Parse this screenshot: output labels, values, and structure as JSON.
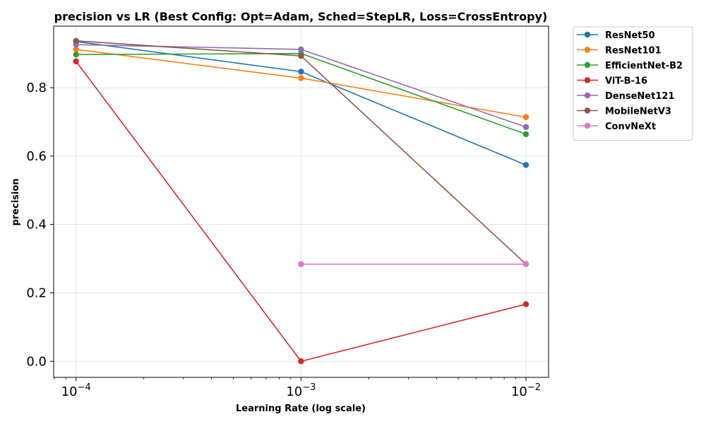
{
  "chart_data": {
    "type": "line",
    "title": "precision vs LR (Best Config: Opt=Adam, Sched=StepLR, Loss=CrossEntropy)",
    "xlabel": "Learning Rate (log scale)",
    "ylabel": "precision",
    "xscale": "log",
    "x_tick_values": [
      0.0001,
      0.001,
      0.01
    ],
    "x_tick_labels": [
      {
        "base": "10",
        "exp": "−4"
      },
      {
        "base": "10",
        "exp": "−3"
      },
      {
        "base": "10",
        "exp": "−2"
      }
    ],
    "y_ticks": [
      0.0,
      0.2,
      0.4,
      0.6,
      0.8
    ],
    "y_tick_labels": [
      "0.0",
      "0.2",
      "0.4",
      "0.6",
      "0.8"
    ],
    "xlim": [
      7.95e-05,
      0.0126
    ],
    "ylim": [
      -0.047,
      0.98
    ],
    "grid": true,
    "legend_placement": "outside-top-right",
    "series": [
      {
        "name": "ResNet50",
        "color": "#1f77b4",
        "points": [
          [
            0.0001,
            0.935
          ],
          [
            0.001,
            0.847
          ],
          [
            0.01,
            0.574
          ]
        ]
      },
      {
        "name": "ResNet101",
        "color": "#ff7f0e",
        "points": [
          [
            0.0001,
            0.912
          ],
          [
            0.001,
            0.828
          ],
          [
            0.01,
            0.714
          ]
        ]
      },
      {
        "name": "EfficientNet-B2",
        "color": "#2ca02c",
        "points": [
          [
            0.0001,
            0.897
          ],
          [
            0.001,
            0.9
          ],
          [
            0.01,
            0.664
          ]
        ]
      },
      {
        "name": "ViT-B-16",
        "color": "#d62728",
        "points": [
          [
            0.0001,
            0.877
          ],
          [
            0.001,
            0.0
          ],
          [
            0.01,
            0.167
          ]
        ]
      },
      {
        "name": "DenseNet121",
        "color": "#9467bd",
        "points": [
          [
            0.0001,
            0.926
          ],
          [
            0.001,
            0.912
          ],
          [
            0.01,
            0.685
          ]
        ]
      },
      {
        "name": "MobileNetV3",
        "color": "#8c564b",
        "points": [
          [
            0.0001,
            0.937
          ],
          [
            0.001,
            0.893
          ],
          [
            0.01,
            0.284
          ]
        ]
      },
      {
        "name": "ConvNeXt",
        "color": "#e377c2",
        "points": [
          [
            0.001,
            0.284
          ],
          [
            0.01,
            0.284
          ]
        ]
      }
    ]
  }
}
